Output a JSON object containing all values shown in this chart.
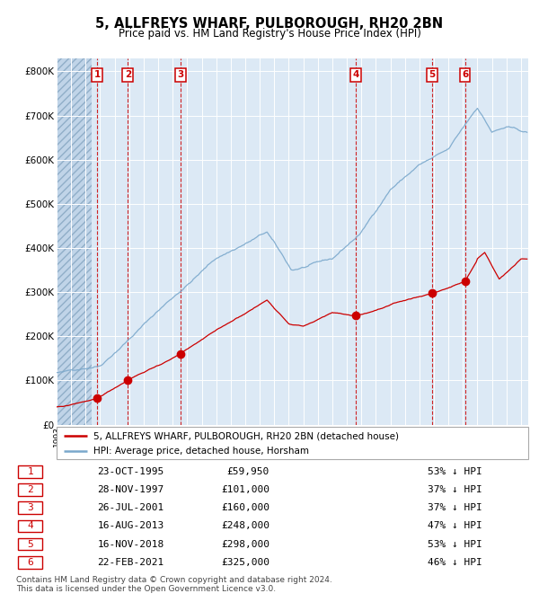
{
  "title": "5, ALLFREYS WHARF, PULBOROUGH, RH20 2BN",
  "subtitle": "Price paid vs. HM Land Registry's House Price Index (HPI)",
  "plot_bg_color": "#dce9f5",
  "grid_color": "#ffffff",
  "red_line_color": "#cc0000",
  "blue_line_color": "#7aa8cc",
  "ylim": [
    0,
    830000
  ],
  "yticks": [
    0,
    100000,
    200000,
    300000,
    400000,
    500000,
    600000,
    700000,
    800000
  ],
  "ytick_labels": [
    "£0",
    "£100K",
    "£200K",
    "£300K",
    "£400K",
    "£500K",
    "£600K",
    "£700K",
    "£800K"
  ],
  "xstart": 1993,
  "xend": 2025.5,
  "sale_dates": [
    1995.81,
    1997.91,
    2001.56,
    2013.62,
    2018.88,
    2021.14
  ],
  "sale_prices": [
    59950,
    101000,
    160000,
    248000,
    298000,
    325000
  ],
  "sale_labels": [
    "1",
    "2",
    "3",
    "4",
    "5",
    "6"
  ],
  "table_data": [
    [
      "1",
      "23-OCT-1995",
      "£59,950",
      "53% ↓ HPI"
    ],
    [
      "2",
      "28-NOV-1997",
      "£101,000",
      "37% ↓ HPI"
    ],
    [
      "3",
      "26-JUL-2001",
      "£160,000",
      "37% ↓ HPI"
    ],
    [
      "4",
      "16-AUG-2013",
      "£248,000",
      "47% ↓ HPI"
    ],
    [
      "5",
      "16-NOV-2018",
      "£298,000",
      "53% ↓ HPI"
    ],
    [
      "6",
      "22-FEB-2021",
      "£325,000",
      "46% ↓ HPI"
    ]
  ],
  "legend_line1": "5, ALLFREYS WHARF, PULBOROUGH, RH20 2BN (detached house)",
  "legend_line2": "HPI: Average price, detached house, Horsham",
  "footer": "Contains HM Land Registry data © Crown copyright and database right 2024.\nThis data is licensed under the Open Government Licence v3.0."
}
